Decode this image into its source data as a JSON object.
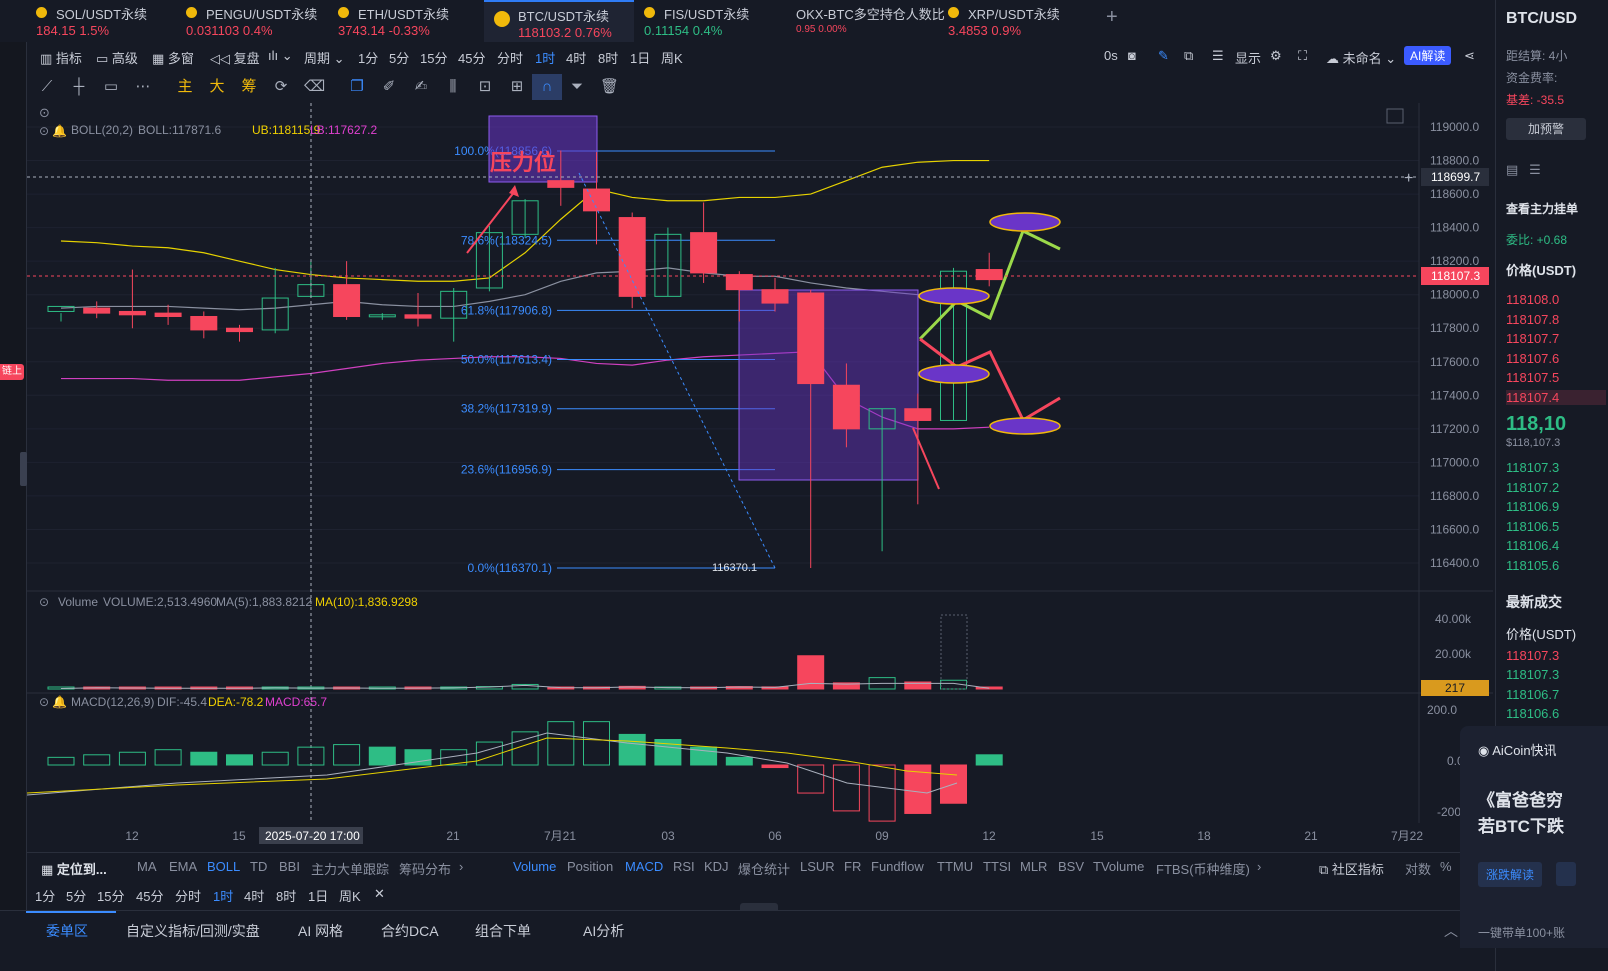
{
  "tabs": [
    {
      "name": "SOL/USDT永续",
      "price": "184.15",
      "change": "1.5%",
      "dir": "down"
    },
    {
      "name": "PENGU/USDT永续",
      "price": "0.031103",
      "change": "0.4%",
      "dir": "down"
    },
    {
      "name": "ETH/USDT永续",
      "price": "3743.14",
      "change": "-0.33%",
      "dir": "down"
    },
    {
      "name": "BTC/USDT永续",
      "price": "118103.2",
      "change": "0.76%",
      "dir": "down"
    },
    {
      "name": "FIS/USDT永续",
      "price": "0.11154",
      "change": "0.4%",
      "dir": "up"
    },
    {
      "name": "OKX-BTC多空持仓人数比",
      "price": "0.95",
      "change": "0.00%",
      "dir": "down"
    },
    {
      "name": "XRP/USDT永续",
      "price": "3.4853",
      "change": "0.9%",
      "dir": "down"
    }
  ],
  "add_tab": "+",
  "toolbar": {
    "items": [
      "指标",
      "高级",
      "多窗",
      "复盘",
      "",
      "周期",
      "1分",
      "5分",
      "15分",
      "45分",
      "分时",
      "1时",
      "4时",
      "8时",
      "1日",
      "周K"
    ],
    "selected": "1时",
    "right": {
      "zero_s": "0s",
      "display": "显示",
      "unnamed": "未命名",
      "ai": "AI解读"
    }
  },
  "draw_tools": {
    "main": "主",
    "big": "大",
    "chip": "筹"
  },
  "chart": {
    "symbol": "BTC/USDT永续",
    "y_ticks": [
      "119000.0",
      "118800.0",
      "118600.0",
      "118400.0",
      "118200.0",
      "118000.0",
      "117800.0",
      "117600.0",
      "117400.0",
      "117200.0",
      "117000.0",
      "116800.0",
      "116600.0",
      "116400.0"
    ],
    "crosshair_price": "118699.7",
    "last_price": "118107.3",
    "boll": {
      "label": "BOLL(20,2)",
      "boll": "BOLL:117871.6",
      "ub": "UB:118115.9",
      "lb": "LB:117627.2"
    },
    "fib_levels": [
      {
        "label": "100.0%(118856.6)",
        "price": 118856.6
      },
      {
        "label": "78.6%(118324.5)",
        "price": 118324.5
      },
      {
        "label": "61.8%(117906.8)",
        "price": 117906.8
      },
      {
        "label": "50.0%(117613.4)",
        "price": 117613.4
      },
      {
        "label": "38.2%(117319.9)",
        "price": 117319.9
      },
      {
        "label": "23.6%(116956.9)",
        "price": 116956.9
      },
      {
        "label": "0.0%(116370.1)",
        "price": 116370.1
      }
    ],
    "low_marker": "116370.1",
    "annotation": "压力位",
    "volume": {
      "label": "Volume",
      "vol": "VOLUME:2,513.4960",
      "ma5": "MA(5):1,883.8212",
      "ma10": "MA(10):1,836.9298",
      "ticks": [
        "40.00k",
        "20.00k"
      ],
      "current": "217"
    },
    "macd": {
      "label": "MACD(12,26,9)",
      "dif": "DIF:-45.4",
      "dea": "DEA:-78.2",
      "macd": "MACD:65.7",
      "ticks": [
        "200.0",
        "0.0",
        "-200"
      ]
    },
    "x_ticks": [
      "12",
      "15",
      "21",
      "7月21",
      "03",
      "06",
      "09",
      "12",
      "15",
      "18",
      "21",
      "7月22"
    ],
    "x_cursor": "2025-07-20 17:00"
  },
  "indicators": {
    "locate": "定位到...",
    "main": [
      "MA",
      "EMA",
      "BOLL",
      "TD",
      "BBI",
      "主力大单跟踪",
      "筹码分布"
    ],
    "sub": [
      "Volume",
      "Position",
      "MACD",
      "RSI",
      "KDJ",
      "爆仓统计",
      "LSUR",
      "FR",
      "Fundflow",
      "TTMU",
      "TTSI",
      "MLR",
      "BSV",
      "TVolume",
      "FTBS(币种维度)"
    ],
    "selected": [
      "BOLL",
      "Volume",
      "MACD"
    ],
    "right": [
      "社区指标",
      "对数",
      "%"
    ]
  },
  "periods": [
    "1分",
    "5分",
    "15分",
    "45分",
    "分时",
    "1时",
    "4时",
    "8时",
    "1日",
    "周K"
  ],
  "period_selected": "1时",
  "bottom_tabs": [
    "委单区",
    "自定义指标/回测/实盘",
    "AI 网格",
    "合约DCA",
    "组合下单",
    "AI分析"
  ],
  "right_panel": {
    "title": "BTC/USD",
    "rows": [
      "距结算: 4小",
      "资金费率:",
      "基差: -35.5"
    ],
    "alert_btn": "加预警",
    "section": "查看主力挂单",
    "ratio": "委比: +0.68",
    "price_header": "价格(USDT)",
    "asks": [
      "118108.0",
      "118107.8",
      "118107.7",
      "118107.6",
      "118107.5",
      "118107.4"
    ],
    "mid_price": "118,10",
    "mid_usd": "$118,107.3",
    "bids": [
      "118107.3",
      "118107.2",
      "118106.9",
      "118106.5",
      "118106.4",
      "118105.6"
    ],
    "trades_title": "最新成交",
    "trades_header": "价格(USDT)",
    "trades": [
      {
        "p": "118107.3",
        "d": "down"
      },
      {
        "p": "118107.3",
        "d": "up"
      },
      {
        "p": "118106.7",
        "d": "up"
      },
      {
        "p": "118106.6",
        "d": "up"
      }
    ]
  },
  "news": {
    "title": "AiCoin快讯",
    "headline1": "《富爸爸穷",
    "headline2": "若BTC下跌",
    "btn": "涨跌解读",
    "footer": "一键带单100+账"
  },
  "left_tag": "链上"
}
